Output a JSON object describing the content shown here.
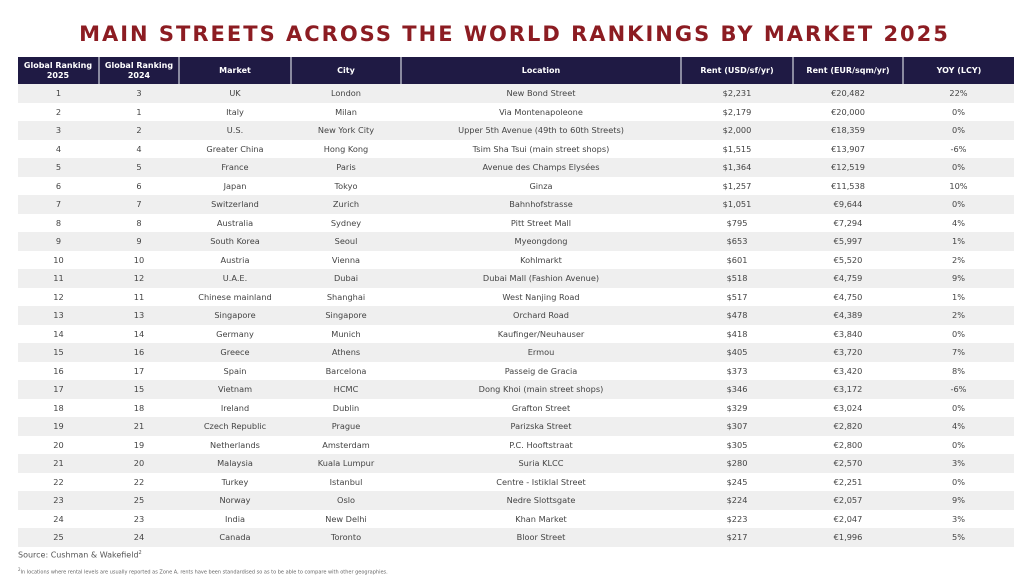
{
  "title": "MAIN STREETS ACROSS THE WORLD RANKINGS BY MARKET 2025",
  "headers": [
    "Global Ranking 2025",
    "Global Ranking 2024",
    "Market",
    "City",
    "Location",
    "Rent (USD/sf/yr)",
    "Rent (EUR/sqm/yr)",
    "YOY (LCY)"
  ],
  "rows": [
    [
      "1",
      "3",
      "UK",
      "London",
      "New Bond Street",
      "$2,231",
      "€20,482",
      "22%"
    ],
    [
      "2",
      "1",
      "Italy",
      "Milan",
      "Via Montenapoleone",
      "$2,179",
      "€20,000",
      "0%"
    ],
    [
      "3",
      "2",
      "U.S.",
      "New York City",
      "Upper 5th Avenue (49th to 60th Streets)",
      "$2,000",
      "€18,359",
      "0%"
    ],
    [
      "4",
      "4",
      "Greater China",
      "Hong Kong",
      "Tsim Sha Tsui (main street shops)",
      "$1,515",
      "€13,907",
      "-6%"
    ],
    [
      "5",
      "5",
      "France",
      "Paris",
      "Avenue des Champs Elysées",
      "$1,364",
      "€12,519",
      "0%"
    ],
    [
      "6",
      "6",
      "Japan",
      "Tokyo",
      "Ginza",
      "$1,257",
      "€11,538",
      "10%"
    ],
    [
      "7",
      "7",
      "Switzerland",
      "Zurich",
      "Bahnhofstrasse",
      "$1,051",
      "€9,644",
      "0%"
    ],
    [
      "8",
      "8",
      "Australia",
      "Sydney",
      "Pitt Street Mall",
      "$795",
      "€7,294",
      "4%"
    ],
    [
      "9",
      "9",
      "South Korea",
      "Seoul",
      "Myeongdong",
      "$653",
      "€5,997",
      "1%"
    ],
    [
      "10",
      "10",
      "Austria",
      "Vienna",
      "Kohlmarkt",
      "$601",
      "€5,520",
      "2%"
    ],
    [
      "11",
      "12",
      "U.A.E.",
      "Dubai",
      "Dubai Mall (Fashion Avenue)",
      "$518",
      "€4,759",
      "9%"
    ],
    [
      "12",
      "11",
      "Chinese mainland",
      "Shanghai",
      "West Nanjing Road",
      "$517",
      "€4,750",
      "1%"
    ],
    [
      "13",
      "13",
      "Singapore",
      "Singapore",
      "Orchard Road",
      "$478",
      "€4,389",
      "2%"
    ],
    [
      "14",
      "14",
      "Germany",
      "Munich",
      "Kaufinger/Neuhauser",
      "$418",
      "€3,840",
      "0%"
    ],
    [
      "15",
      "16",
      "Greece",
      "Athens",
      "Ermou",
      "$405",
      "€3,720",
      "7%"
    ],
    [
      "16",
      "17",
      "Spain",
      "Barcelona",
      "Passeig de Gracia",
      "$373",
      "€3,420",
      "8%"
    ],
    [
      "17",
      "15",
      "Vietnam",
      "HCMC",
      "Dong Khoi (main street shops)",
      "$346",
      "€3,172",
      "-6%"
    ],
    [
      "18",
      "18",
      "Ireland",
      "Dublin",
      "Grafton Street",
      "$329",
      "€3,024",
      "0%"
    ],
    [
      "19",
      "21",
      "Czech Republic",
      "Prague",
      "Parizska Street",
      "$307",
      "€2,820",
      "4%"
    ],
    [
      "20",
      "19",
      "Netherlands",
      "Amsterdam",
      "P.C. Hooftstraat",
      "$305",
      "€2,800",
      "0%"
    ],
    [
      "21",
      "20",
      "Malaysia",
      "Kuala Lumpur",
      "Suria KLCC",
      "$280",
      "€2,570",
      "3%"
    ],
    [
      "22",
      "22",
      "Turkey",
      "Istanbul",
      "Centre - Istiklal Street",
      "$245",
      "€2,251",
      "0%"
    ],
    [
      "23",
      "25",
      "Norway",
      "Oslo",
      "Nedre Slottsgate",
      "$224",
      "€2,057",
      "9%"
    ],
    [
      "24",
      "23",
      "India",
      "New Delhi",
      "Khan Market",
      "$223",
      "€2,047",
      "3%"
    ],
    [
      "25",
      "24",
      "Canada",
      "Toronto",
      "Bloor Street",
      "$217",
      "€1,996",
      "5%"
    ]
  ],
  "source": "Source: Cushman & Wakefield",
  "source_sup": "2",
  "note_sup": "2",
  "note": "In locations where rental levels are usually reported as Zone A, rents have been standardised so as to be able to compare with other geographies.",
  "colors": {
    "title": "#8c1c22",
    "header_bg": "#1f1a44",
    "row_alt": "#efefef"
  }
}
